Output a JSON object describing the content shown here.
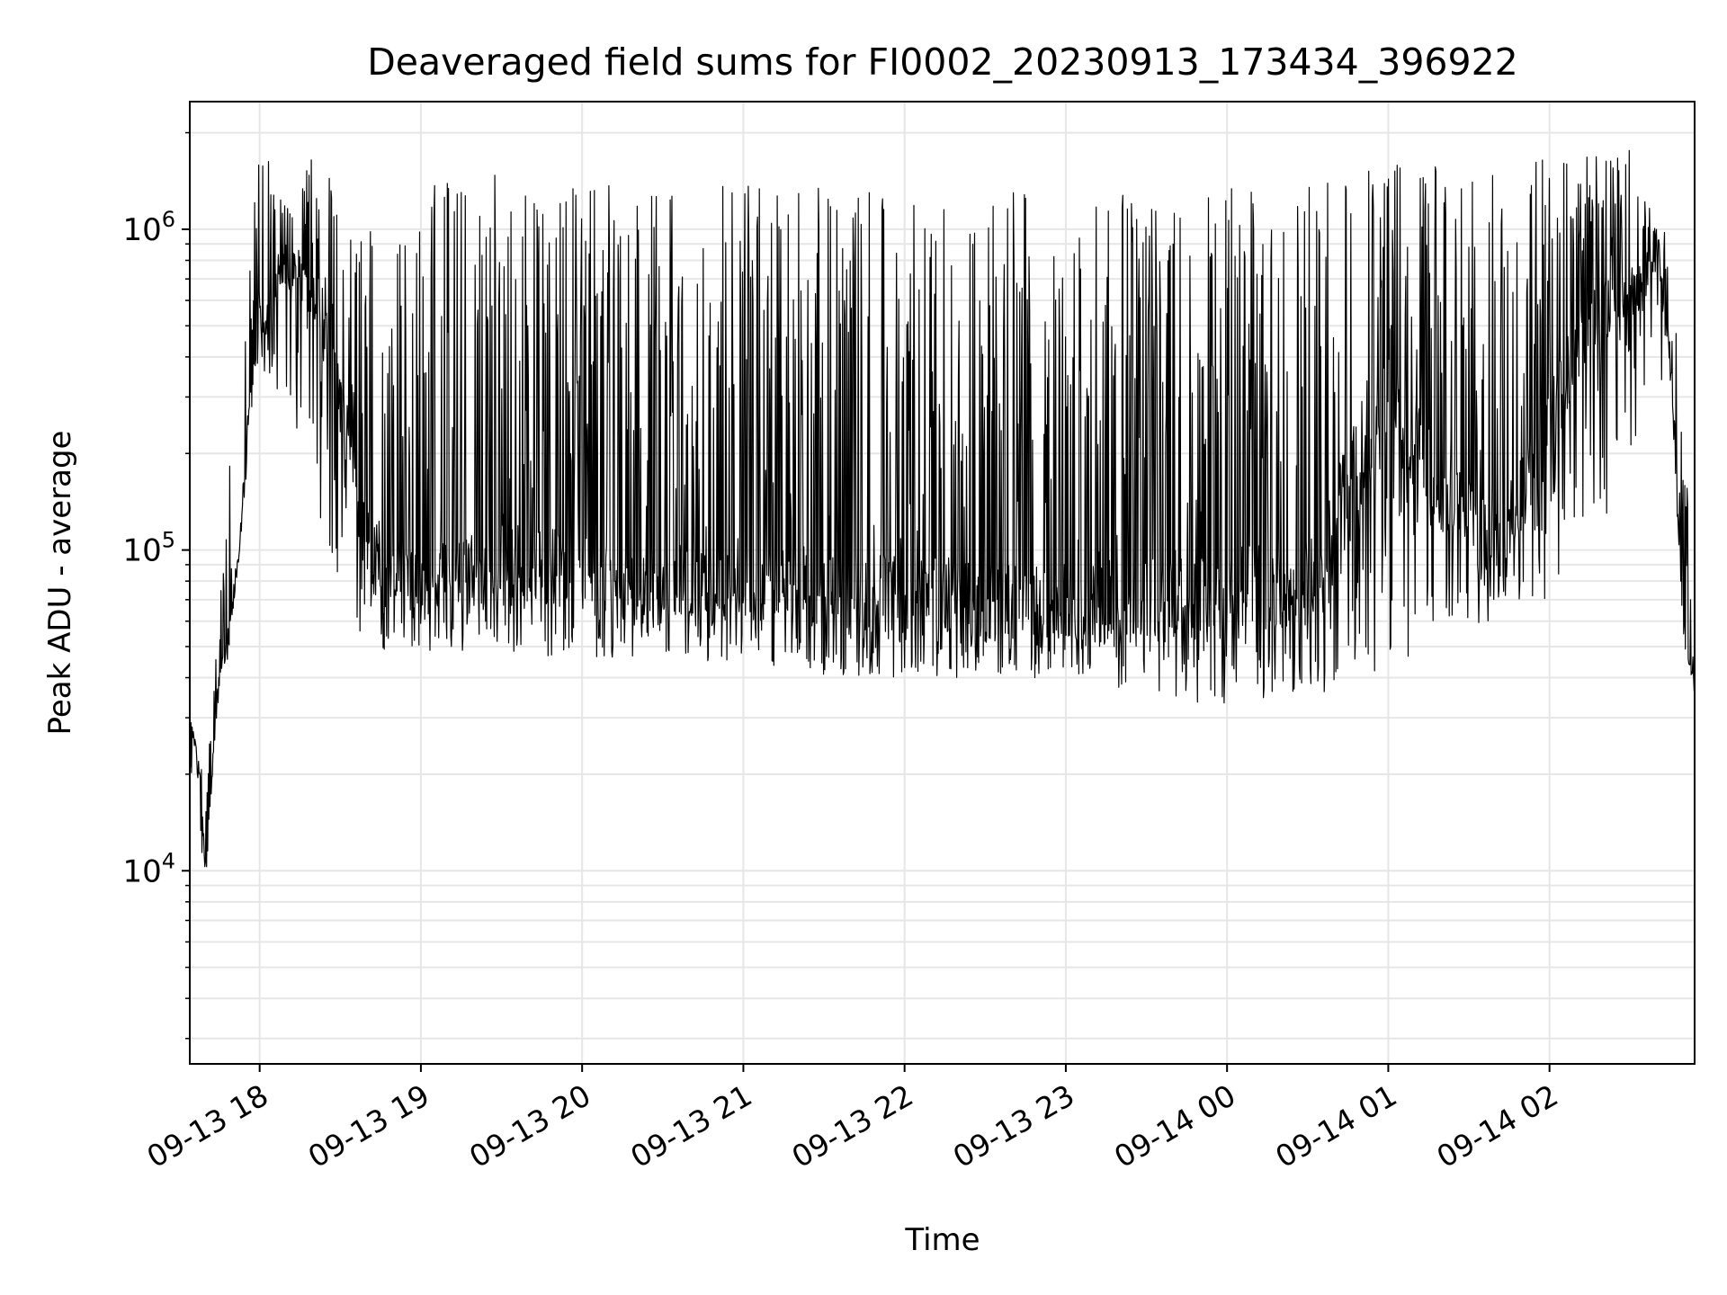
{
  "chart_data": {
    "type": "line",
    "title": "Deaveraged field sums for FI0002_20230913_173434_396922",
    "xlabel": "Time",
    "ylabel": "Peak ADU - average",
    "yscale": "log",
    "ylim": [
      2500,
      2500000
    ],
    "xlim": [
      "09-13 17:34",
      "09-14 02:54"
    ],
    "grid": true,
    "line_color": "#000000",
    "grid_color": "#e6e6e6",
    "xtick_labels": [
      "09-13 18",
      "09-13 19",
      "09-13 20",
      "09-13 21",
      "09-13 22",
      "09-13 23",
      "09-14 00",
      "09-14 01",
      "09-14 02"
    ],
    "ytick_labels": [
      {
        "base": "10",
        "exp": "4",
        "value": 10000
      },
      {
        "base": "10",
        "exp": "5",
        "value": 100000
      },
      {
        "base": "10",
        "exp": "6",
        "value": 1000000
      }
    ],
    "series": [
      {
        "x": [
          "09-13 17:34",
          "09-13 17:38",
          "09-13 17:40",
          "09-13 17:44",
          "09-13 17:48",
          "09-13 17:52",
          "09-13 17:56",
          "09-13 18:00",
          "09-13 18:10",
          "09-13 18:20",
          "09-13 18:30",
          "09-13 18:40",
          "09-13 18:50",
          "09-13 19:00",
          "09-13 19:30",
          "09-13 20:00",
          "09-13 20:30",
          "09-13 21:00",
          "09-13 21:30",
          "09-13 22:00",
          "09-13 22:30",
          "09-13 23:00",
          "09-13 23:30",
          "09-14 00:00",
          "09-14 00:30",
          "09-14 01:00",
          "09-14 01:20",
          "09-14 01:40",
          "09-14 02:00",
          "09-14 02:15",
          "09-14 02:30",
          "09-14 02:40",
          "09-14 02:45",
          "09-14 02:50",
          "09-14 02:54"
        ],
        "y": [
          30000,
          20000,
          9500,
          35000,
          50000,
          90000,
          300000,
          500000,
          750000,
          650000,
          300000,
          100000,
          90000,
          80000,
          90000,
          85000,
          75000,
          80000,
          75000,
          70000,
          70000,
          65000,
          70000,
          75000,
          80000,
          300000,
          150000,
          100000,
          250000,
          550000,
          600000,
          800000,
          400000,
          60000,
          35000
        ],
        "peak_envelope": [
          30000,
          22000,
          20000,
          60000,
          150000,
          400000,
          800000,
          1900000,
          1200000,
          1700000,
          1400000,
          1300000,
          1200000,
          1500000,
          1500000,
          1400000,
          1400000,
          1400000,
          1400000,
          1300000,
          1300000,
          1300000,
          1400000,
          1350000,
          1400000,
          1600000,
          1600000,
          1600000,
          1700000,
          1700000,
          1900000,
          1000000,
          1000000,
          300000,
          35000
        ],
        "trough_envelope": [
          20000,
          12000,
          9500,
          30000,
          45000,
          90000,
          200000,
          350000,
          300000,
          150000,
          60000,
          45000,
          50000,
          48000,
          48000,
          45000,
          45000,
          45000,
          40000,
          40000,
          40000,
          40000,
          35000,
          32000,
          35000,
          40000,
          55000,
          60000,
          70000,
          90000,
          200000,
          350000,
          300000,
          50000,
          35000
        ]
      }
    ]
  }
}
